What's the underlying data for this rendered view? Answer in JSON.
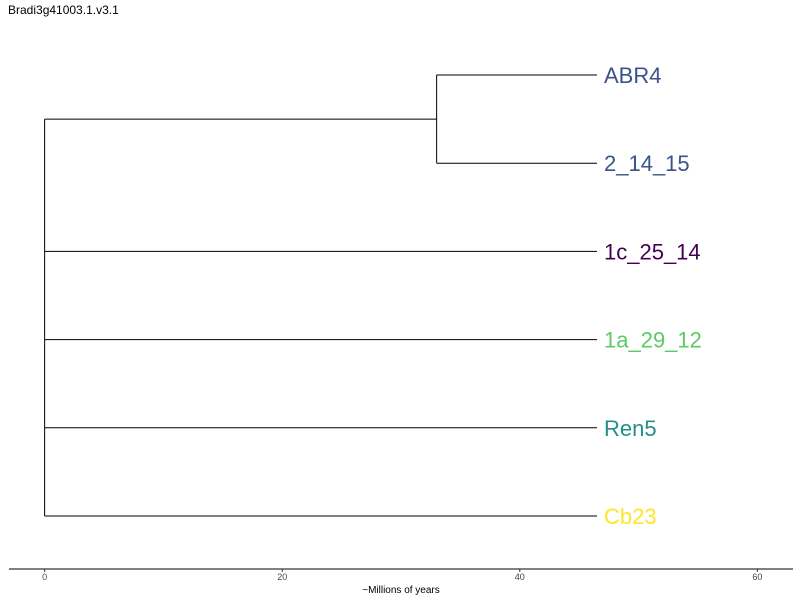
{
  "page_title": "Bradi3g41003.1.v3.1",
  "chart_data": {
    "type": "dendrogram",
    "title": "Bradi3g41003.1.v3.1",
    "xlabel": "~Millions of years",
    "xlim": [
      -3,
      63
    ],
    "x_ticks": [
      0,
      20,
      40,
      60
    ],
    "tips": [
      {
        "name": "ABR4",
        "color": "#3B528B",
        "x": 46.5
      },
      {
        "name": "2_14_15",
        "color": "#3B528B",
        "x": 46.5
      },
      {
        "name": "1c_25_14",
        "color": "#440154",
        "x": 46.5
      },
      {
        "name": "1a_29_12",
        "color": "#5EC962",
        "x": 46.5
      },
      {
        "name": "Ren5",
        "color": "#21908C",
        "x": 46.5
      },
      {
        "name": "Cb23",
        "color": "#FDE725",
        "x": 46.5
      }
    ],
    "internal_nodes": [
      {
        "name": "ABR4+2_14_15",
        "x": 33,
        "children": [
          "ABR4",
          "2_14_15"
        ]
      },
      {
        "name": "root",
        "x": 0,
        "children": [
          "ABR4+2_14_15",
          "1c_25_14",
          "1a_29_12",
          "Ren5",
          "Cb23"
        ]
      }
    ]
  }
}
